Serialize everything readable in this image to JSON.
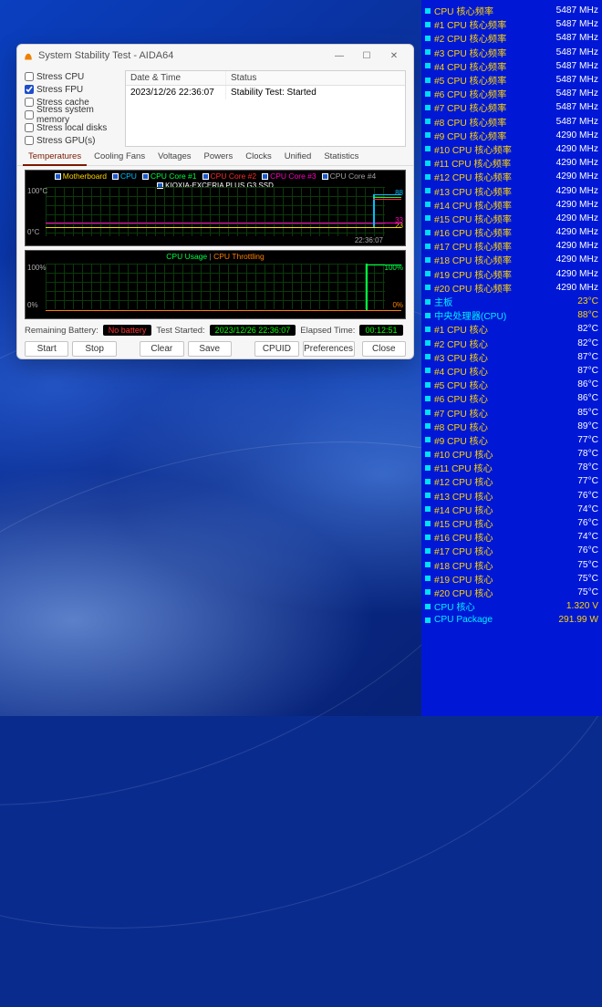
{
  "window": {
    "title": "System Stability Test - AIDA64",
    "checks": [
      {
        "label": "Stress CPU",
        "checked": false
      },
      {
        "label": "Stress FPU",
        "checked": true
      },
      {
        "label": "Stress cache",
        "checked": false
      },
      {
        "label": "Stress system memory",
        "checked": false
      },
      {
        "label": "Stress local disks",
        "checked": false
      },
      {
        "label": "Stress GPU(s)",
        "checked": false
      }
    ],
    "table": {
      "col_date": "Date & Time",
      "col_status": "Status",
      "row_date": "2023/12/26 22:36:07",
      "row_status": "Stability Test: Started"
    },
    "tabs": [
      "Temperatures",
      "Cooling Fans",
      "Voltages",
      "Powers",
      "Clocks",
      "Unified",
      "Statistics"
    ],
    "active_tab": 0,
    "graph1": {
      "legend": [
        {
          "label": "Motherboard",
          "color": "#ffd400"
        },
        {
          "label": "CPU",
          "color": "#00c0ff"
        },
        {
          "label": "CPU Core #1",
          "color": "#00ff40"
        },
        {
          "label": "CPU Core #2",
          "color": "#ff2a2a"
        },
        {
          "label": "CPU Core #3",
          "color": "#ff00c0"
        },
        {
          "label": "CPU Core #4",
          "color": "#a0a0a0"
        }
      ],
      "sub_legend": "KIOXIA-EXCERIA PLUS G3 SSD",
      "y_top": "100°C",
      "y_bot": "0°C",
      "r_top": "88",
      "r_top_color": "#00c0ff",
      "r_bot": "23",
      "r_bot_color": "#ffd400",
      "r_bot2": "33",
      "r_bot2_color": "#ff00c0",
      "time": "22:36:07",
      "mb_line_y": 0.79,
      "mb_color": "#ffd400",
      "ssd_line_y": 0.7,
      "ssd_color": "#ff00c0",
      "spike_x": 0.92,
      "spike_top": 0.15,
      "spike_color": "#00c0ff"
    },
    "graph2": {
      "legend_a": "CPU Usage",
      "legend_a_color": "#00ff40",
      "legend_b": "CPU Throttling",
      "legend_b_color": "#ff8000",
      "y_top": "100%",
      "y_bot": "0%",
      "r_top": "100%",
      "r_top_color": "#00ff40",
      "r_bot": "0%",
      "r_bot_color": "#ff8000",
      "step_x": 0.9
    },
    "info": {
      "battery_lbl": "Remaining Battery:",
      "battery_val": "No battery",
      "started_lbl": "Test Started:",
      "started_val": "2023/12/26 22:36:07",
      "elapsed_lbl": "Elapsed Time:",
      "elapsed_val": "00:12:51"
    },
    "buttons": {
      "start": "Start",
      "stop": "Stop",
      "clear": "Clear",
      "save": "Save",
      "cpuid": "CPUID",
      "prefs": "Preferences",
      "close": "Close"
    }
  },
  "sidepanel": {
    "rows": [
      {
        "label": "CPU 核心频率",
        "val": "5487 MHz"
      },
      {
        "label": "#1 CPU 核心频率",
        "val": "5487 MHz"
      },
      {
        "label": "#2 CPU 核心频率",
        "val": "5487 MHz"
      },
      {
        "label": "#3 CPU 核心频率",
        "val": "5487 MHz"
      },
      {
        "label": "#4 CPU 核心频率",
        "val": "5487 MHz"
      },
      {
        "label": "#5 CPU 核心频率",
        "val": "5487 MHz"
      },
      {
        "label": "#6 CPU 核心频率",
        "val": "5487 MHz"
      },
      {
        "label": "#7 CPU 核心频率",
        "val": "5487 MHz"
      },
      {
        "label": "#8 CPU 核心频率",
        "val": "5487 MHz"
      },
      {
        "label": "#9 CPU 核心频率",
        "val": "4290 MHz"
      },
      {
        "label": "#10 CPU 核心频率",
        "val": "4290 MHz"
      },
      {
        "label": "#11 CPU 核心频率",
        "val": "4290 MHz"
      },
      {
        "label": "#12 CPU 核心频率",
        "val": "4290 MHz"
      },
      {
        "label": "#13 CPU 核心频率",
        "val": "4290 MHz"
      },
      {
        "label": "#14 CPU 核心频率",
        "val": "4290 MHz"
      },
      {
        "label": "#15 CPU 核心频率",
        "val": "4290 MHz"
      },
      {
        "label": "#16 CPU 核心频率",
        "val": "4290 MHz"
      },
      {
        "label": "#17 CPU 核心频率",
        "val": "4290 MHz"
      },
      {
        "label": "#18 CPU 核心频率",
        "val": "4290 MHz"
      },
      {
        "label": "#19 CPU 核心频率",
        "val": "4290 MHz"
      },
      {
        "label": "#20 CPU 核心频率",
        "val": "4290 MHz"
      },
      {
        "label": "主板",
        "val": "23°C",
        "cyan": true
      },
      {
        "label": "中央处理器(CPU)",
        "val": "88°C",
        "cyan": true
      },
      {
        "label": "#1 CPU 核心",
        "val": "82°C"
      },
      {
        "label": "#2 CPU 核心",
        "val": "82°C"
      },
      {
        "label": "#3 CPU 核心",
        "val": "87°C"
      },
      {
        "label": "#4 CPU 核心",
        "val": "87°C"
      },
      {
        "label": "#5 CPU 核心",
        "val": "86°C"
      },
      {
        "label": "#6 CPU 核心",
        "val": "86°C"
      },
      {
        "label": "#7 CPU 核心",
        "val": "85°C"
      },
      {
        "label": "#8 CPU 核心",
        "val": "89°C"
      },
      {
        "label": "#9 CPU 核心",
        "val": "77°C"
      },
      {
        "label": "#10 CPU 核心",
        "val": "78°C"
      },
      {
        "label": "#11 CPU 核心",
        "val": "78°C"
      },
      {
        "label": "#12 CPU 核心",
        "val": "77°C"
      },
      {
        "label": "#13 CPU 核心",
        "val": "76°C"
      },
      {
        "label": "#14 CPU 核心",
        "val": "74°C"
      },
      {
        "label": "#15 CPU 核心",
        "val": "76°C"
      },
      {
        "label": "#16 CPU 核心",
        "val": "74°C"
      },
      {
        "label": "#17 CPU 核心",
        "val": "76°C"
      },
      {
        "label": "#18 CPU 核心",
        "val": "75°C"
      },
      {
        "label": "#19 CPU 核心",
        "val": "75°C"
      },
      {
        "label": "#20 CPU 核心",
        "val": "75°C"
      },
      {
        "label": "CPU 核心",
        "val": "1.320 V",
        "cyan": true
      },
      {
        "label": "CPU Package",
        "val": "291.99 W",
        "cyan": true
      }
    ]
  }
}
